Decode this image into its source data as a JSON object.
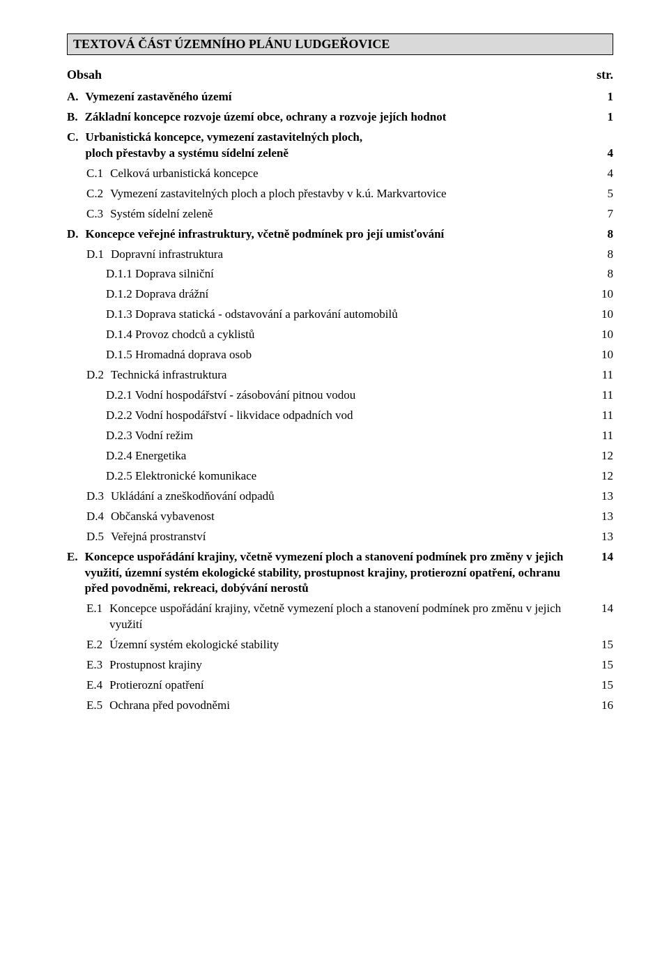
{
  "title_bar": "TEXTOVÁ ČÁST ÚZEMNÍHO PLÁNU LUDGEŘOVICE",
  "obsah_label": "Obsah",
  "str_label": "str.",
  "toc": [
    {
      "label": "A.",
      "text": "Vymezení zastavěného území",
      "page": "1",
      "bold": true,
      "indent": 0
    },
    {
      "label": "B.",
      "text": "Základní koncepce rozvoje území obce, ochrany a rozvoje jejích hodnot",
      "page": "1",
      "bold": true,
      "indent": 0
    },
    {
      "label": "C.",
      "text": "Urbanistická koncepce, vymezení zastavitelných ploch,",
      "text2": "ploch přestavby a systému sídelní zeleně",
      "page": "4",
      "bold": true,
      "indent": 0
    },
    {
      "label": "C.1",
      "text": "Celková urbanistická koncepce",
      "page": "4",
      "bold": false,
      "indent": 1
    },
    {
      "label": "C.2",
      "text": "Vymezení zastavitelných ploch a ploch přestavby v k.ú. Markvartovice",
      "page": "5",
      "bold": false,
      "indent": 1
    },
    {
      "label": "C.3",
      "text": "Systém sídelní zeleně",
      "page": "7",
      "bold": false,
      "indent": 1
    },
    {
      "label": "D.",
      "text": "Koncepce veřejné infrastruktury, včetně podmínek pro její umisťování",
      "page": "8",
      "bold": true,
      "indent": 0
    },
    {
      "label": "D.1",
      "text": "Dopravní infrastruktura",
      "page": "8",
      "bold": false,
      "indent": 1
    },
    {
      "label": "D.1.1",
      "text": "Doprava silniční",
      "page": "8",
      "bold": false,
      "indent": 2,
      "joined": true
    },
    {
      "label": "D.1.2",
      "text": "Doprava drážní",
      "page": "10",
      "bold": false,
      "indent": 2,
      "joined": true
    },
    {
      "label": "D.1.3",
      "text": "Doprava statická - odstavování a parkování automobilů",
      "page": "10",
      "bold": false,
      "indent": 2,
      "joined": true
    },
    {
      "label": "D.1.4",
      "text": "Provoz chodců a cyklistů",
      "page": "10",
      "bold": false,
      "indent": 2,
      "joined": true
    },
    {
      "label": "D.1.5",
      "text": "Hromadná doprava osob",
      "page": "10",
      "bold": false,
      "indent": 2,
      "joined": true
    },
    {
      "label": "D.2",
      "text": "Technická infrastruktura",
      "page": "11",
      "bold": false,
      "indent": 1
    },
    {
      "label": "D.2.1",
      "text": "Vodní hospodářství - zásobování pitnou vodou",
      "page": "11",
      "bold": false,
      "indent": 2,
      "joined": true
    },
    {
      "label": "D.2.2",
      "text": "Vodní hospodářství - likvidace odpadních vod",
      "page": "11",
      "bold": false,
      "indent": 2,
      "joined": true
    },
    {
      "label": "D.2.3",
      "text": "Vodní režim",
      "page": "11",
      "bold": false,
      "indent": 2,
      "joined": true
    },
    {
      "label": "D.2.4",
      "text": "Energetika",
      "page": "12",
      "bold": false,
      "indent": 2,
      "joined": true
    },
    {
      "label": "D.2.5",
      "text": "Elektronické komunikace",
      "page": "12",
      "bold": false,
      "indent": 2,
      "joined": true
    },
    {
      "label": "D.3",
      "text": "Ukládání a zneškodňování odpadů",
      "page": "13",
      "bold": false,
      "indent": 1
    },
    {
      "label": "D.4",
      "text": "Občanská vybavenost",
      "page": "13",
      "bold": false,
      "indent": 1
    },
    {
      "label": "D.5",
      "text": "Veřejná prostranství",
      "page": "13",
      "bold": false,
      "indent": 1
    },
    {
      "label": "E.",
      "text": "Koncepce uspořádání krajiny, včetně vymezení ploch a stanovení podmínek pro změny v jejich využití, územní systém ekologické stability, prostupnost krajiny, protierozní opatření, ochranu před povodněmi, rekreaci, dobývání nerostů",
      "page": "14",
      "bold": true,
      "indent": 0
    },
    {
      "label": "E.1",
      "text": "Koncepce uspořádání krajiny, včetně vymezení ploch a stanovení podmínek pro změnu v jejich využití",
      "page": "14",
      "bold": false,
      "indent": 1
    },
    {
      "label": "E.2",
      "text": "Územní systém ekologické stability",
      "page": "15",
      "bold": false,
      "indent": 1
    },
    {
      "label": "E.3",
      "text": "Prostupnost krajiny",
      "page": "15",
      "bold": false,
      "indent": 1
    },
    {
      "label": "E.4",
      "text": "Protierozní opatření",
      "page": "15",
      "bold": false,
      "indent": 1
    },
    {
      "label": "E.5",
      "text": "Ochrana před povodněmi",
      "page": "16",
      "bold": false,
      "indent": 1
    }
  ]
}
